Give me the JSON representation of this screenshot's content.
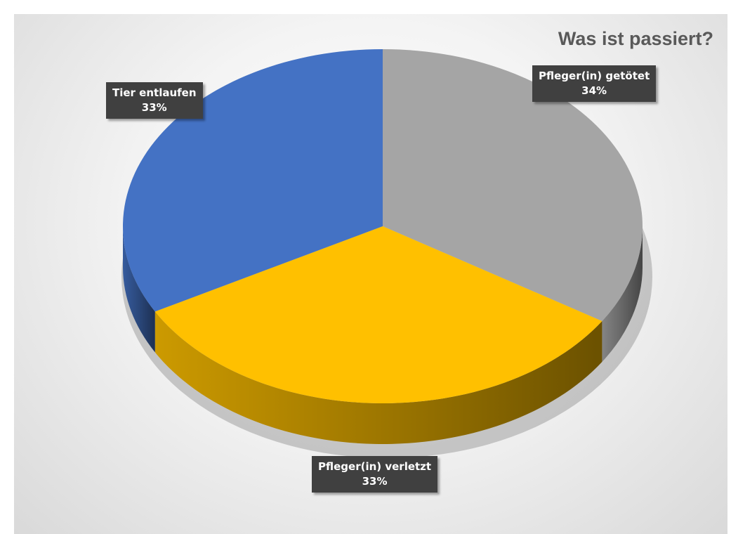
{
  "chart_data": {
    "type": "pie",
    "title": "Was ist passiert?",
    "categories": [
      "Pfleger(in) getötet",
      "Pfleger(in) verletzt",
      "Tier entlaufen"
    ],
    "values": [
      34,
      33,
      33
    ],
    "labels": [
      "34%",
      "33%",
      "33%"
    ],
    "colors": [
      "#a5a5a5",
      "#ffc000",
      "#4472c4"
    ],
    "style": "3d-exploded-none",
    "legend": "none"
  }
}
